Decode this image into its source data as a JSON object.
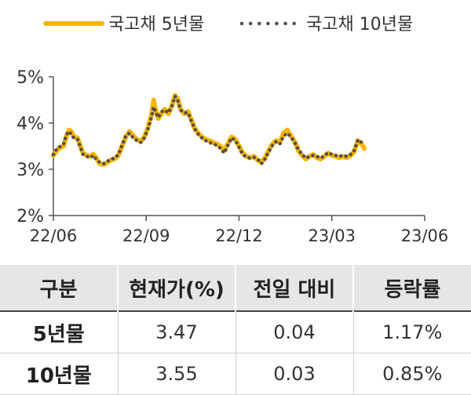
{
  "chart_data": {
    "type": "line",
    "colors": {
      "series1": "#F7B500",
      "series2": "#5A4E42",
      "axis": "#555555"
    },
    "legend": {
      "placement": "top"
    },
    "x_ticks": [
      "22/06",
      "22/09",
      "22/12",
      "23/03",
      "23/06"
    ],
    "y_ticks": [
      "2%",
      "3%",
      "4%",
      "5%"
    ],
    "ylim": [
      2,
      5
    ],
    "series": [
      {
        "name": "국고채 5년물",
        "points": [
          [
            0.0,
            3.3
          ],
          [
            0.04,
            3.42
          ],
          [
            0.08,
            3.48
          ],
          [
            0.11,
            3.5
          ],
          [
            0.14,
            3.72
          ],
          [
            0.17,
            3.85
          ],
          [
            0.2,
            3.8
          ],
          [
            0.22,
            3.7
          ],
          [
            0.26,
            3.68
          ],
          [
            0.29,
            3.5
          ],
          [
            0.32,
            3.35
          ],
          [
            0.36,
            3.3
          ],
          [
            0.4,
            3.28
          ],
          [
            0.43,
            3.33
          ],
          [
            0.46,
            3.25
          ],
          [
            0.5,
            3.12
          ],
          [
            0.54,
            3.1
          ],
          [
            0.58,
            3.15
          ],
          [
            0.62,
            3.2
          ],
          [
            0.66,
            3.22
          ],
          [
            0.7,
            3.3
          ],
          [
            0.74,
            3.5
          ],
          [
            0.78,
            3.7
          ],
          [
            0.82,
            3.82
          ],
          [
            0.86,
            3.72
          ],
          [
            0.9,
            3.65
          ],
          [
            0.94,
            3.6
          ],
          [
            0.98,
            3.7
          ],
          [
            1.02,
            3.9
          ],
          [
            1.06,
            4.2
          ],
          [
            1.08,
            4.5
          ],
          [
            1.1,
            4.3
          ],
          [
            1.13,
            4.1
          ],
          [
            1.17,
            4.22
          ],
          [
            1.2,
            4.3
          ],
          [
            1.24,
            4.2
          ],
          [
            1.28,
            4.4
          ],
          [
            1.31,
            4.6
          ],
          [
            1.34,
            4.52
          ],
          [
            1.37,
            4.3
          ],
          [
            1.41,
            4.2
          ],
          [
            1.45,
            4.25
          ],
          [
            1.48,
            4.1
          ],
          [
            1.52,
            3.9
          ],
          [
            1.56,
            3.78
          ],
          [
            1.6,
            3.7
          ],
          [
            1.64,
            3.65
          ],
          [
            1.68,
            3.62
          ],
          [
            1.72,
            3.58
          ],
          [
            1.76,
            3.55
          ],
          [
            1.8,
            3.5
          ],
          [
            1.84,
            3.4
          ],
          [
            1.88,
            3.55
          ],
          [
            1.92,
            3.7
          ],
          [
            1.96,
            3.65
          ],
          [
            2.0,
            3.5
          ],
          [
            2.04,
            3.35
          ],
          [
            2.08,
            3.28
          ],
          [
            2.12,
            3.25
          ],
          [
            2.16,
            3.28
          ],
          [
            2.2,
            3.2
          ],
          [
            2.24,
            3.15
          ],
          [
            2.28,
            3.25
          ],
          [
            2.32,
            3.4
          ],
          [
            2.36,
            3.55
          ],
          [
            2.4,
            3.62
          ],
          [
            2.44,
            3.58
          ],
          [
            2.48,
            3.78
          ],
          [
            2.52,
            3.85
          ],
          [
            2.56,
            3.72
          ],
          [
            2.6,
            3.6
          ],
          [
            2.64,
            3.4
          ],
          [
            2.68,
            3.3
          ],
          [
            2.72,
            3.22
          ],
          [
            2.76,
            3.28
          ],
          [
            2.8,
            3.32
          ],
          [
            2.84,
            3.25
          ],
          [
            2.88,
            3.22
          ],
          [
            2.92,
            3.28
          ],
          [
            2.96,
            3.35
          ],
          [
            3.0,
            3.3
          ],
          [
            3.04,
            3.28
          ],
          [
            3.08,
            3.25
          ],
          [
            3.12,
            3.28
          ],
          [
            3.16,
            3.25
          ],
          [
            3.2,
            3.3
          ],
          [
            3.24,
            3.38
          ],
          [
            3.28,
            3.62
          ],
          [
            3.32,
            3.55
          ],
          [
            3.35,
            3.45
          ]
        ]
      },
      {
        "name": "국고채 10년물",
        "points": [
          [
            0.0,
            3.32
          ],
          [
            0.04,
            3.45
          ],
          [
            0.08,
            3.5
          ],
          [
            0.11,
            3.55
          ],
          [
            0.14,
            3.75
          ],
          [
            0.17,
            3.82
          ],
          [
            0.2,
            3.72
          ],
          [
            0.22,
            3.68
          ],
          [
            0.26,
            3.65
          ],
          [
            0.29,
            3.48
          ],
          [
            0.32,
            3.32
          ],
          [
            0.36,
            3.28
          ],
          [
            0.4,
            3.25
          ],
          [
            0.43,
            3.3
          ],
          [
            0.46,
            3.22
          ],
          [
            0.5,
            3.15
          ],
          [
            0.54,
            3.12
          ],
          [
            0.58,
            3.17
          ],
          [
            0.62,
            3.22
          ],
          [
            0.66,
            3.24
          ],
          [
            0.7,
            3.32
          ],
          [
            0.74,
            3.52
          ],
          [
            0.78,
            3.72
          ],
          [
            0.82,
            3.78
          ],
          [
            0.86,
            3.68
          ],
          [
            0.9,
            3.62
          ],
          [
            0.94,
            3.58
          ],
          [
            0.98,
            3.68
          ],
          [
            1.02,
            3.88
          ],
          [
            1.06,
            4.15
          ],
          [
            1.08,
            4.35
          ],
          [
            1.1,
            4.25
          ],
          [
            1.13,
            4.12
          ],
          [
            1.17,
            4.25
          ],
          [
            1.2,
            4.28
          ],
          [
            1.24,
            4.22
          ],
          [
            1.28,
            4.38
          ],
          [
            1.31,
            4.58
          ],
          [
            1.34,
            4.48
          ],
          [
            1.37,
            4.28
          ],
          [
            1.41,
            4.22
          ],
          [
            1.45,
            4.22
          ],
          [
            1.48,
            4.08
          ],
          [
            1.52,
            3.88
          ],
          [
            1.56,
            3.76
          ],
          [
            1.6,
            3.68
          ],
          [
            1.64,
            3.62
          ],
          [
            1.68,
            3.58
          ],
          [
            1.72,
            3.55
          ],
          [
            1.76,
            3.52
          ],
          [
            1.8,
            3.45
          ],
          [
            1.84,
            3.35
          ],
          [
            1.88,
            3.52
          ],
          [
            1.92,
            3.68
          ],
          [
            1.96,
            3.62
          ],
          [
            2.0,
            3.48
          ],
          [
            2.04,
            3.32
          ],
          [
            2.08,
            3.26
          ],
          [
            2.12,
            3.24
          ],
          [
            2.16,
            3.26
          ],
          [
            2.2,
            3.22
          ],
          [
            2.24,
            3.12
          ],
          [
            2.28,
            3.22
          ],
          [
            2.32,
            3.38
          ],
          [
            2.36,
            3.52
          ],
          [
            2.4,
            3.6
          ],
          [
            2.44,
            3.55
          ],
          [
            2.48,
            3.72
          ],
          [
            2.52,
            3.78
          ],
          [
            2.56,
            3.7
          ],
          [
            2.6,
            3.58
          ],
          [
            2.64,
            3.42
          ],
          [
            2.68,
            3.32
          ],
          [
            2.72,
            3.24
          ],
          [
            2.76,
            3.28
          ],
          [
            2.8,
            3.3
          ],
          [
            2.84,
            3.28
          ],
          [
            2.88,
            3.24
          ],
          [
            2.92,
            3.3
          ],
          [
            2.96,
            3.36
          ],
          [
            3.0,
            3.32
          ],
          [
            3.04,
            3.3
          ],
          [
            3.08,
            3.28
          ],
          [
            3.12,
            3.3
          ],
          [
            3.16,
            3.28
          ],
          [
            3.2,
            3.32
          ],
          [
            3.24,
            3.4
          ],
          [
            3.28,
            3.64
          ],
          [
            3.32,
            3.58
          ],
          [
            3.35,
            3.52
          ]
        ]
      }
    ]
  },
  "table": {
    "headers": [
      "구분",
      "현재가(%)",
      "전일 대비",
      "등락률"
    ],
    "rows": [
      [
        "5년물",
        "3.47",
        "0.04",
        "1.17%"
      ],
      [
        "10년물",
        "3.55",
        "0.03",
        "0.85%"
      ]
    ]
  }
}
